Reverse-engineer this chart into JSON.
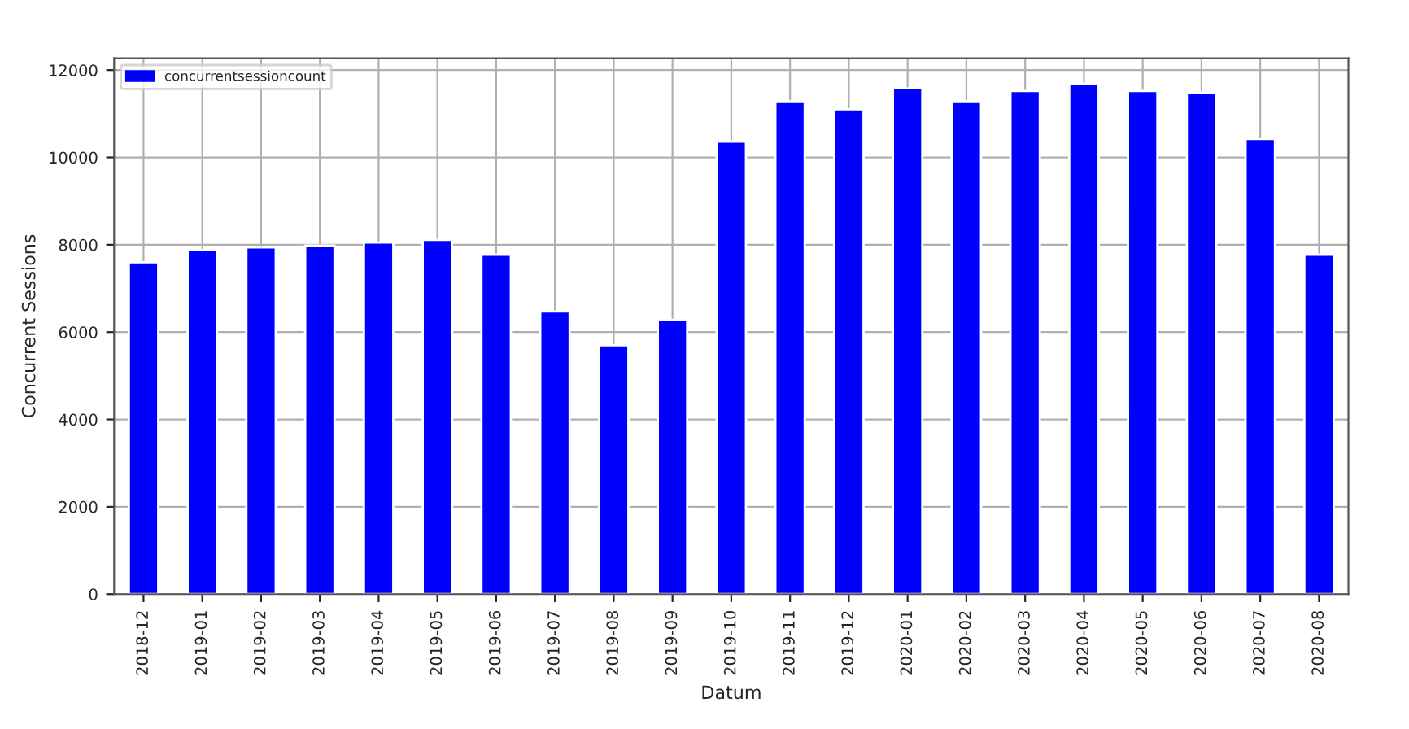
{
  "chart_data": {
    "type": "bar",
    "xlabel": "Datum",
    "ylabel": "Concurrent Sessions",
    "categories": [
      "2018-12",
      "2019-01",
      "2019-02",
      "2019-03",
      "2019-04",
      "2019-05",
      "2019-06",
      "2019-07",
      "2019-08",
      "2019-09",
      "2019-10",
      "2019-11",
      "2019-12",
      "2020-01",
      "2020-02",
      "2020-03",
      "2020-04",
      "2020-05",
      "2020-06",
      "2020-07",
      "2020-08"
    ],
    "series": [
      {
        "name": "concurrentsessioncount",
        "color": "#0000ff",
        "values": [
          7600,
          7880,
          7940,
          7980,
          8050,
          8110,
          7770,
          6470,
          5700,
          6280,
          10360,
          11290,
          11100,
          11580,
          11290,
          11520,
          11690,
          11520,
          11490,
          10420,
          7770
        ]
      }
    ],
    "ylim": [
      0,
      12270
    ],
    "yticks": [
      0,
      2000,
      4000,
      6000,
      8000,
      10000,
      12000
    ],
    "grid": true,
    "legend": "top left"
  }
}
